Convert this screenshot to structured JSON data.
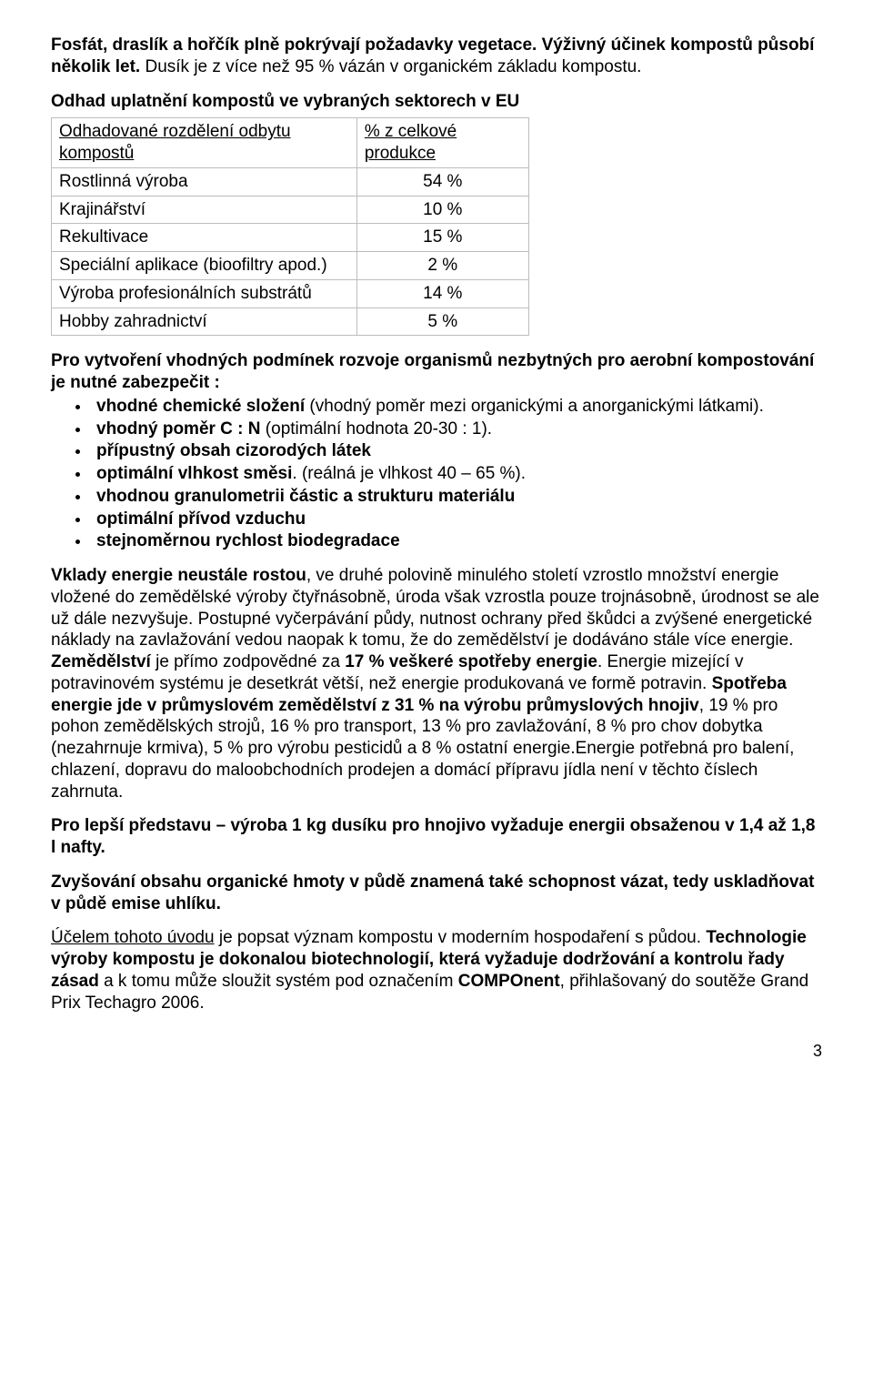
{
  "p1": {
    "b1": "Fosfát, draslík a hořčík plně pokrývají požadavky vegetace. Výživný účinek kompostů působí několik let.",
    "r1": " Dusík je z více než 95 % vázán v organickém základu kompostu."
  },
  "tableTitle": "Odhad uplatnění kompostů ve vybraných sektorech v EU",
  "table": {
    "h1": "Odhadované rozdělení odbytu kompostů",
    "h2": "% z celkové produkce",
    "rows": [
      {
        "label": "Rostlinná výroba",
        "value": "54 %"
      },
      {
        "label": "Krajinářství",
        "value": "10 %"
      },
      {
        "label": "Rekultivace",
        "value": "15 %"
      },
      {
        "label": "Speciální aplikace (bioofiltry apod.)",
        "value": "2 %"
      },
      {
        "label": "Výroba profesionálních substrátů",
        "value": "14 %"
      },
      {
        "label": "Hobby zahradnictví",
        "value": "5 %"
      }
    ]
  },
  "conditions": {
    "intro": "Pro vytvoření vhodných podmínek rozvoje organismů nezbytných pro aerobní kompostování je nutné zabezpečit :",
    "items": [
      {
        "b": "vhodné chemické složení",
        "r": " (vhodný poměr mezi organickými a anorganickými látkami)."
      },
      {
        "b": "vhodný poměr C : N",
        "r": " (optimální hodnota 20-30 : 1)."
      },
      {
        "b": "přípustný obsah cizorodých látek",
        "r": ""
      },
      {
        "b": "optimální vlhkost směsi",
        "r": ". (reálná je vlhkost 40 – 65 %)."
      },
      {
        "b": "vhodnou granulometrii částic a strukturu materiálu",
        "r": ""
      },
      {
        "b": "optimální přívod vzduchu",
        "r": ""
      },
      {
        "b": "stejnoměrnou rychlost biodegradace",
        "r": ""
      }
    ]
  },
  "energy": {
    "b1": "Vklady energie neustále rostou",
    "r1": ", ve druhé polovině minulého století vzrostlo množství energie vložené do zemědělské výroby čtyřnásobně, úroda však vzrostla pouze trojnásobně, úrodnost se ale už dále nezvyšuje. Postupné vyčerpávání půdy, nutnost ochrany před škůdci a zvýšené energetické náklady na zavlažování vedou naopak k tomu, že do zemědělství je dodáváno stále více energie. ",
    "b2": "Zemědělství",
    "r2": " je přímo zodpovědné za ",
    "b3": "17 % veškeré spotřeby energie",
    "r3": ". Energie mizející v potravinovém systému je desetkrát větší, než energie produkovaná ve formě potravin. ",
    "b4": "Spotřeba energie jde v průmyslovém zemědělství z 31 % na výrobu průmyslových hnojiv",
    "r4": ", 19 % pro pohon zemědělských strojů, 16 % pro transport, 13 % pro zavlažování, 8 % pro chov dobytka (nezahrnuje krmiva), 5 % pro výrobu pesticidů a 8 % ostatní energie.Energie potřebná pro balení, chlazení, dopravu do maloobchodních prodejen a domácí přípravu jídla není v těchto číslech zahrnuta."
  },
  "nitrogen": "Pro lepší představu – výroba 1 kg dusíku pro hnojivo vyžaduje energii obsaženou v 1,4 až 1,8 l nafty.",
  "carbon": "Zvyšování obsahu organické hmoty v půdě znamená také schopnost vázat, tedy uskladňovat v půdě emise uhlíku.",
  "purpose": {
    "u1": "Účelem tohoto úvodu",
    "r1": " je popsat význam kompostu v moderním hospodaření s půdou. ",
    "b1": "Technologie výroby kompostu je dokonalou biotechnologií, která vyžaduje dodržování a kontrolu řady zásad",
    "r2": " a k tomu může sloužit systém pod označením ",
    "b2": "COMPOnent",
    "r3": ", přihlašovaný do soutěže Grand Prix Techagro 2006."
  },
  "page": "3"
}
